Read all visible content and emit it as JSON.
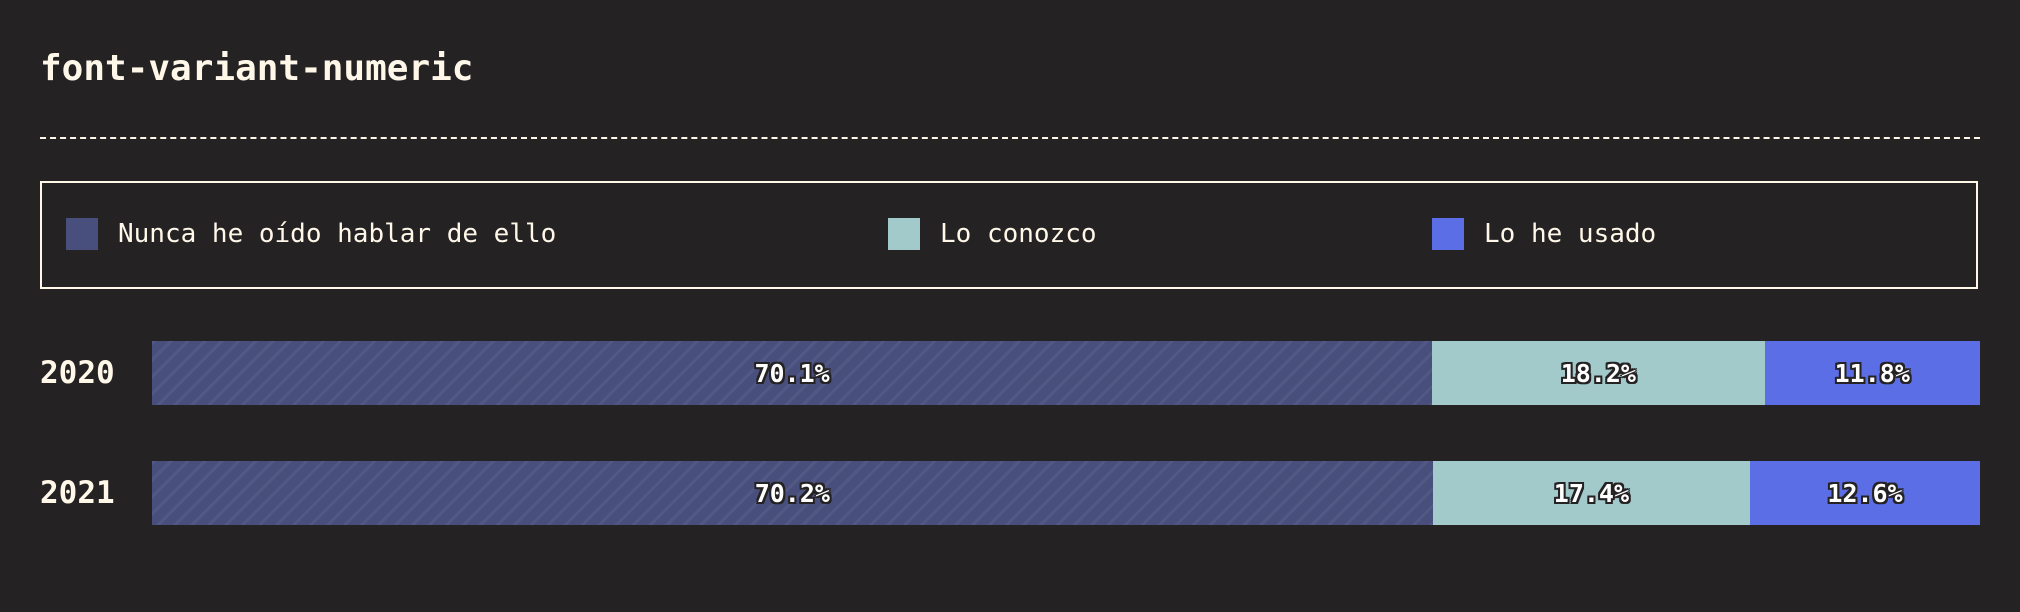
{
  "chart_data": {
    "type": "bar",
    "stacked": true,
    "orientation": "horizontal",
    "title": "font-variant-numeric",
    "categories": [
      "2020",
      "2021"
    ],
    "unit": "%",
    "legend_position": "top",
    "grid": false,
    "series": [
      {
        "name": "Nunca he oído hablar de ello",
        "color": "#484f7c",
        "hatched": true,
        "values": [
          70.1,
          70.2
        ],
        "labels": [
          "70.1%",
          "70.2%"
        ]
      },
      {
        "name": "Lo conozco",
        "color": "#a2cacb",
        "hatched": false,
        "values": [
          18.2,
          17.4
        ],
        "labels": [
          "18.2%",
          "17.4%"
        ]
      },
      {
        "name": "Lo he usado",
        "color": "#5b6ee6",
        "hatched": false,
        "values": [
          11.8,
          12.6
        ],
        "labels": [
          "11.8%",
          "12.6%"
        ]
      }
    ]
  }
}
